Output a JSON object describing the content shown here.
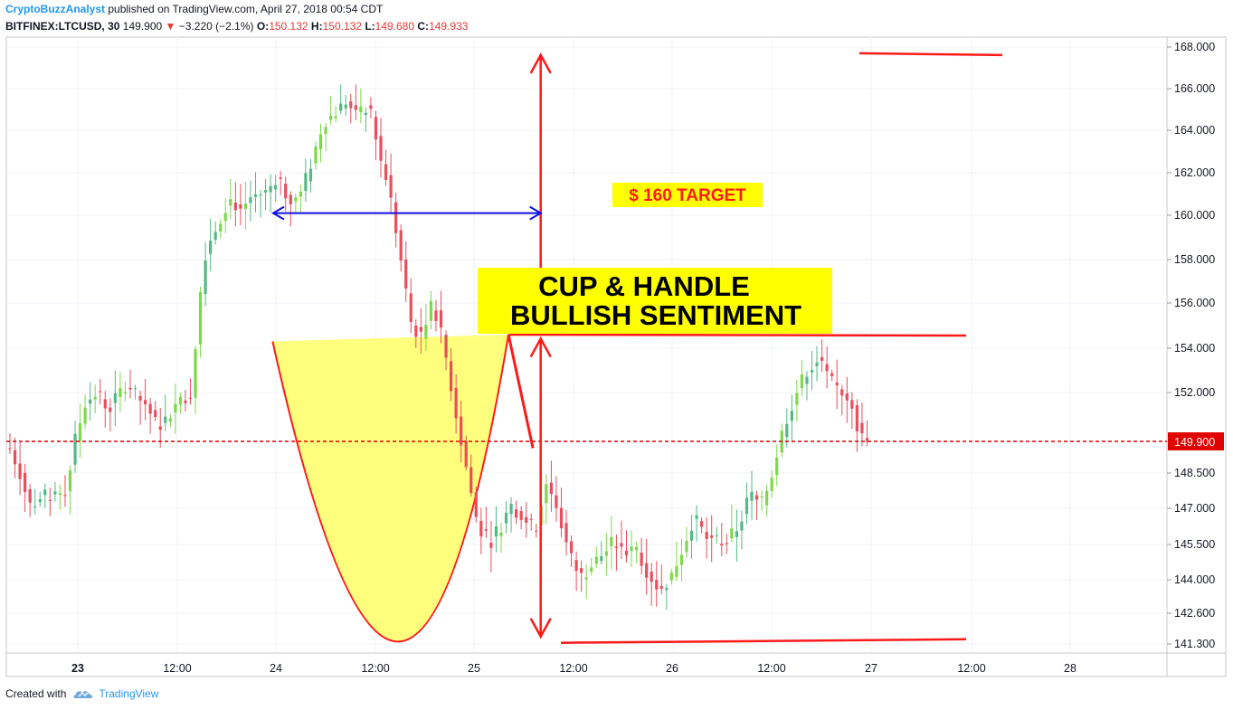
{
  "header": {
    "author": "CryptoBuzzAnalyst",
    "published": "published on TradingView.com, April 27, 2018 00:54 CDT",
    "symbol": "BITFINEX:LTCUSD, 30",
    "last": "149.900",
    "change_arrow": "▼",
    "change": "−3.220 (−2.1%)",
    "o_label": "O:",
    "o_value": "150.132",
    "h_label": "H:",
    "h_value": "150.132",
    "l_label": "L:",
    "l_value": "149.680",
    "c_label": "C:",
    "c_value": "149.933"
  },
  "footer": {
    "created_with": "Created with",
    "brand": "TradingView",
    "brand_icon": "tradingview-cloud-icon"
  },
  "colors": {
    "up": "#53b987",
    "up_bright": "#7ed84a",
    "down": "#eb4d5c",
    "annotation_red": "#ff1a1a",
    "arrow_blue": "#1010e0",
    "highlight_yellow": "#ffff00",
    "cup_fill": "#ffff66",
    "price_line": "#e00000"
  },
  "chart_data": {
    "type": "candlestick",
    "x_tick_labels": [
      "23",
      "12:00",
      "24",
      "12:00",
      "25",
      "12:00",
      "26",
      "12:00",
      "27",
      "12:00",
      "28"
    ],
    "y_tick_labels": [
      "168.000",
      "166.000",
      "164.000",
      "162.000",
      "160.000",
      "158.000",
      "156.000",
      "154.000",
      "152.000",
      "148.500",
      "147.000",
      "145.500",
      "144.000",
      "142.600",
      "141.300"
    ],
    "y_tick_values": [
      168.0,
      166.0,
      164.0,
      162.0,
      160.0,
      158.0,
      156.0,
      154.0,
      152.0,
      148.5,
      147.0,
      145.5,
      144.0,
      142.6,
      141.3
    ],
    "current_price_label": "149.900",
    "current_price": 149.9,
    "annotations": {
      "target_label": "$ 160 TARGET",
      "pattern_line1": "CUP & HANDLE",
      "pattern_line2": "BULLISH SENTIMENT"
    },
    "price_path": [
      [
        0,
        149.6
      ],
      [
        1.5,
        148.4
      ],
      [
        2.5,
        147.1
      ],
      [
        4,
        147.4
      ],
      [
        6,
        147.6
      ],
      [
        7.5,
        147.8
      ],
      [
        8.5,
        149.8
      ],
      [
        10,
        151.6
      ],
      [
        11.5,
        152.0
      ],
      [
        13,
        151.3
      ],
      [
        15,
        152.2
      ],
      [
        16.5,
        151.9
      ],
      [
        18,
        151.5
      ],
      [
        19.5,
        150.5
      ],
      [
        21,
        151.0
      ],
      [
        22.5,
        151.8
      ],
      [
        24,
        151.9
      ],
      [
        25,
        156.0
      ],
      [
        26,
        158.6
      ],
      [
        27.5,
        159.6
      ],
      [
        29,
        160.8
      ],
      [
        30.5,
        160.3
      ],
      [
        32,
        160.9
      ],
      [
        34,
        161.1
      ],
      [
        35.5,
        161.9
      ],
      [
        37,
        160.6
      ],
      [
        38.5,
        161.0
      ],
      [
        40,
        162.6
      ],
      [
        41.5,
        164.4
      ],
      [
        43,
        164.8
      ],
      [
        44.5,
        165.4
      ],
      [
        46,
        164.6
      ],
      [
        47,
        165.1
      ],
      [
        48,
        164.6
      ],
      [
        49,
        162.6
      ],
      [
        50,
        161.6
      ],
      [
        51.5,
        158.5
      ],
      [
        53,
        155.2
      ],
      [
        54.5,
        154.4
      ],
      [
        56,
        156.1
      ],
      [
        57.5,
        154.0
      ],
      [
        59,
        151.2
      ],
      [
        60.5,
        148.6
      ],
      [
        62,
        146.1
      ],
      [
        63.5,
        145.6
      ],
      [
        65,
        146.3
      ],
      [
        66.5,
        147.2
      ],
      [
        68,
        146.5
      ],
      [
        69.5,
        146.1
      ],
      [
        71,
        148.1
      ],
      [
        72.5,
        147.0
      ],
      [
        74,
        145.1
      ],
      [
        75.5,
        144.1
      ],
      [
        77,
        144.6
      ],
      [
        78.5,
        145.1
      ],
      [
        80,
        145.6
      ],
      [
        81.5,
        145.1
      ],
      [
        83,
        145.3
      ],
      [
        84.5,
        144.3
      ],
      [
        86,
        143.6
      ],
      [
        87.5,
        144.1
      ],
      [
        89,
        145.3
      ],
      [
        90.5,
        146.6
      ],
      [
        92,
        145.9
      ],
      [
        93.5,
        145.6
      ],
      [
        95,
        145.6
      ],
      [
        96.5,
        146.3
      ],
      [
        98,
        147.6
      ],
      [
        99.5,
        147.1
      ],
      [
        101,
        148.6
      ],
      [
        102.5,
        150.6
      ],
      [
        104,
        151.9
      ],
      [
        105.5,
        153.0
      ],
      [
        107,
        153.5
      ],
      [
        108.5,
        152.5
      ],
      [
        110,
        152.1
      ],
      [
        111.5,
        151.6
      ],
      [
        112.5,
        150.1
      ],
      [
        113.5,
        149.9
      ]
    ],
    "cup_pattern": {
      "left_rim": [
        44.6,
        154.3
      ],
      "bottom": [
        65.7,
        141.4
      ],
      "right_rim": [
        84.1,
        154.6
      ],
      "handle_end": [
        88.2,
        149.6
      ]
    },
    "target_arrow": {
      "from_x": 44.7,
      "to_x": 89.5,
      "price": 160.1
    },
    "measure_arrow": {
      "x": 89.5,
      "top": 167.7,
      "mid": 154.5,
      "bottom": 141.5
    }
  }
}
